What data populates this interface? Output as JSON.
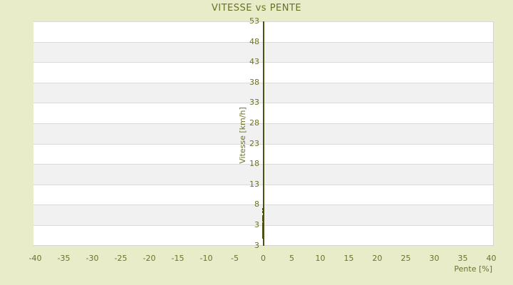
{
  "title": "VITESSE vs PENTE",
  "colors": {
    "background": "#e8ecc9",
    "text": "#6d7128",
    "axis_and_points": "#4b5014",
    "band_gray": "#f1f1f1",
    "band_white": "#ffffff",
    "gridline": "#dadada"
  },
  "chart_data": {
    "type": "scatter",
    "title": "VITESSE vs PENTE",
    "xlabel": "Pente [%]",
    "ylabel": "Vitesse [km/h]",
    "x_ticks": [
      -40,
      -35,
      -30,
      -25,
      -20,
      -15,
      -10,
      -5,
      0,
      5,
      10,
      15,
      20,
      25,
      30,
      35,
      40
    ],
    "y_ticks": [
      53,
      48,
      43,
      38,
      33,
      28,
      23,
      18,
      13,
      8,
      3
    ],
    "y_axis_bottom_label": "3",
    "xlim": [
      -40.5,
      40.5
    ],
    "ylim": [
      0,
      53
    ],
    "grid": "horizontal-alternating-bands",
    "legend": "none",
    "points": [
      {
        "x": 0,
        "y": 6.9
      },
      {
        "x": 0,
        "y": 6.2
      },
      {
        "x": 0,
        "y": 5.2
      },
      {
        "x": 0,
        "y": 4.7
      },
      {
        "x": 0,
        "y": 4.2
      },
      {
        "x": 0,
        "y": 3.4
      },
      {
        "x": 0,
        "y": 3.1
      },
      {
        "x": 0,
        "y": 2.8
      },
      {
        "x": 0,
        "y": 2.6
      },
      {
        "x": 0,
        "y": 2.4
      },
      {
        "x": 0,
        "y": 2.2
      },
      {
        "x": 0,
        "y": 2.0
      },
      {
        "x": 0,
        "y": 1.8
      },
      {
        "x": 0,
        "y": 1.6
      },
      {
        "x": 0,
        "y": 1.4
      },
      {
        "x": 0,
        "y": 1.2
      },
      {
        "x": 0,
        "y": 1.0
      },
      {
        "x": 0,
        "y": 0.8
      },
      {
        "x": 0,
        "y": 0.6
      },
      {
        "x": 0,
        "y": 0.4
      },
      {
        "x": 0,
        "y": 0.2
      },
      {
        "x": 0,
        "y": 0.0
      }
    ]
  }
}
